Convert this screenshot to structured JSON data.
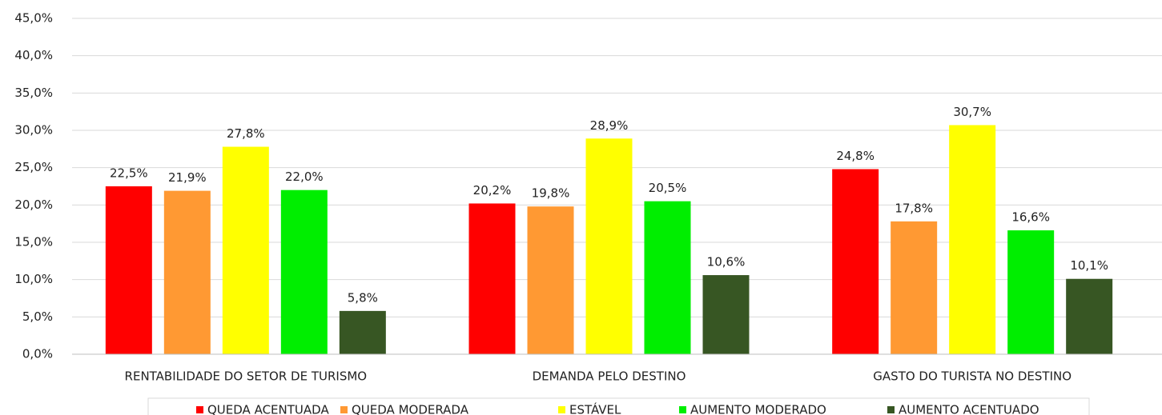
{
  "chart_data": {
    "type": "bar",
    "categories": [
      "RENTABILIDADE DO SETOR DE TURISMO",
      "DEMANDA PELO DESTINO",
      "GASTO DO TURISTA NO DESTINO"
    ],
    "series": [
      {
        "name": "QUEDA ACENTUADA",
        "color": "#ff0000",
        "values": [
          22.5,
          20.2,
          24.8
        ],
        "value_labels": [
          "22,5%",
          "20,2%",
          "24,8%"
        ]
      },
      {
        "name": "QUEDA MODERADA",
        "color": "#ff9933",
        "values": [
          21.9,
          19.8,
          17.8
        ],
        "value_labels": [
          "21,9%",
          "19,8%",
          "17,8%"
        ]
      },
      {
        "name": "ESTÁVEL",
        "color": "#ffff00",
        "values": [
          27.8,
          28.9,
          30.7
        ],
        "value_labels": [
          "27,8%",
          "28,9%",
          "30,7%"
        ]
      },
      {
        "name": "AUMENTO MODERADO",
        "color": "#00ee00",
        "values": [
          22.0,
          20.5,
          16.6
        ],
        "value_labels": [
          "22,0%",
          "20,5%",
          "16,6%"
        ]
      },
      {
        "name": "AUMENTO ACENTUADO",
        "color": "#375623",
        "values": [
          5.8,
          10.6,
          10.1
        ],
        "value_labels": [
          "5,8%",
          "10,6%",
          "10,1%"
        ]
      }
    ],
    "ylim": [
      0,
      45
    ],
    "yticks": [
      {
        "value": 0,
        "label": "0,0%"
      },
      {
        "value": 5,
        "label": "5,0%"
      },
      {
        "value": 10,
        "label": "10,0%"
      },
      {
        "value": 15,
        "label": "15,0%"
      },
      {
        "value": 20,
        "label": "20,0%"
      },
      {
        "value": 25,
        "label": "25,0%"
      },
      {
        "value": 30,
        "label": "30,0%"
      },
      {
        "value": 35,
        "label": "35,0%"
      },
      {
        "value": 40,
        "label": "40,0%"
      },
      {
        "value": 45,
        "label": "45,0%"
      }
    ],
    "grid": true,
    "legend": "bottom"
  }
}
